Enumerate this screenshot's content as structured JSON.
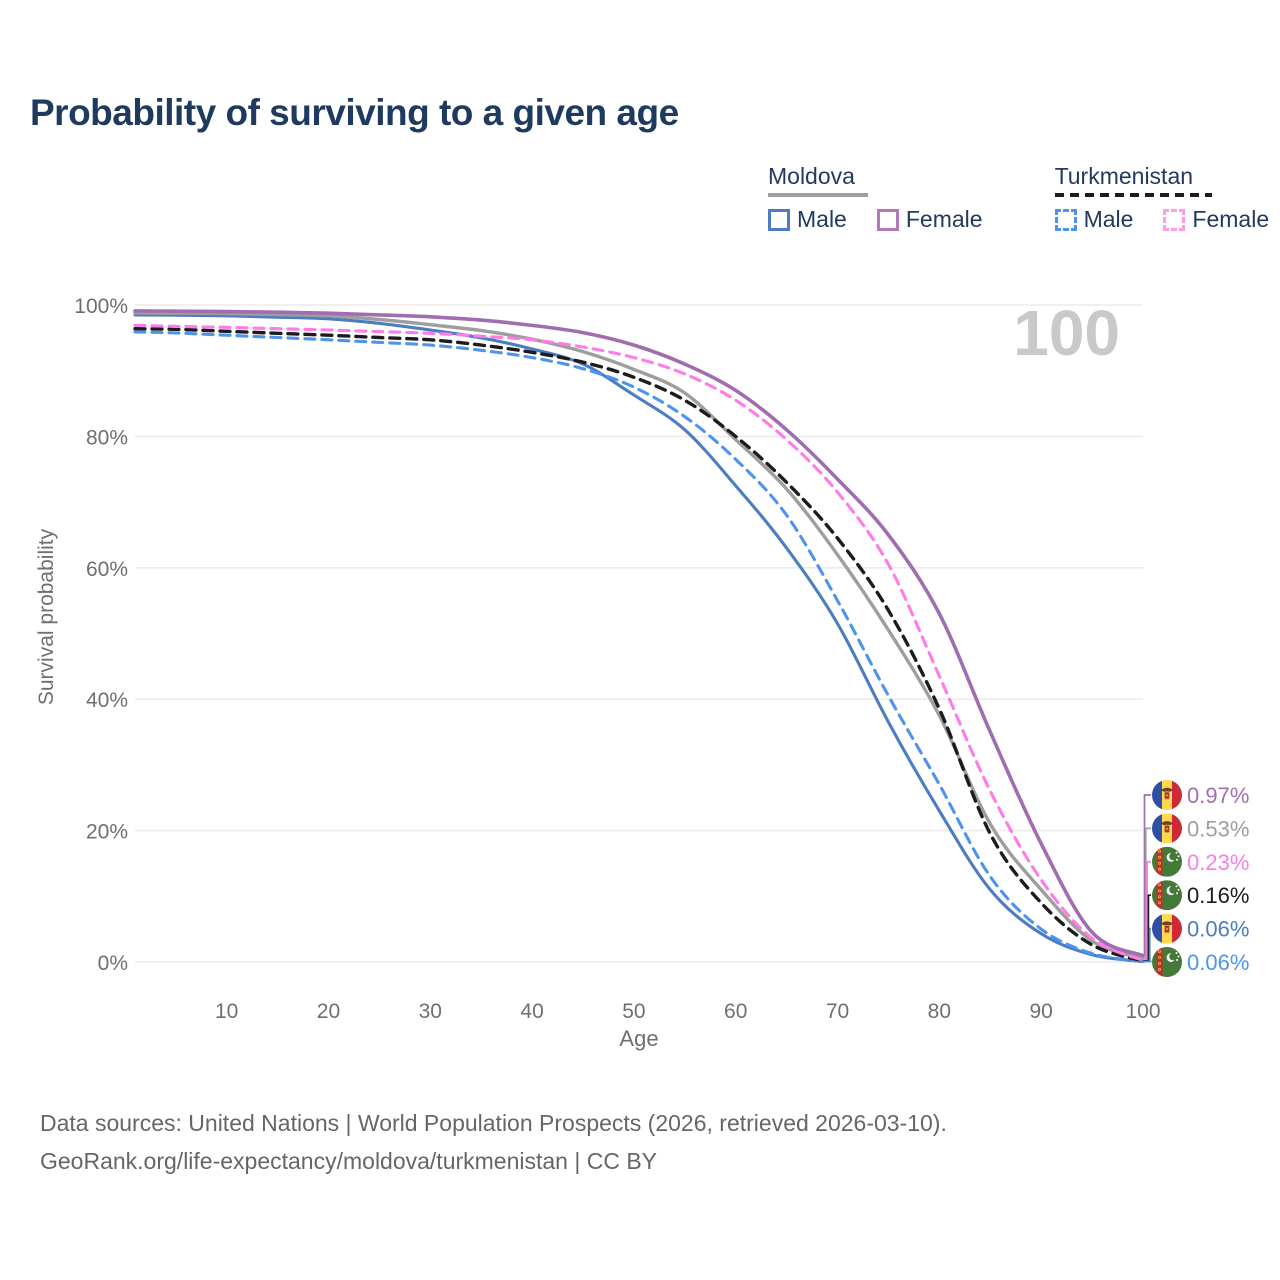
{
  "title": "Probability of surviving to a given age",
  "watermark_age": "100",
  "legend": {
    "groups": [
      {
        "country": "Moldova",
        "line_style": "solid",
        "line_color": "#9E9E9E",
        "items": [
          {
            "label": "Male",
            "color": "#4B7DC0",
            "style": "solid"
          },
          {
            "label": "Female",
            "color": "#B479B8",
            "style": "solid"
          }
        ]
      },
      {
        "country": "Turkmenistan",
        "line_style": "dashed",
        "line_color": "#1C1C1C",
        "items": [
          {
            "label": "Male",
            "color": "#4E94EE",
            "style": "dashed"
          },
          {
            "label": "Female",
            "color": "#FF9BE8",
            "style": "dashed"
          }
        ]
      }
    ]
  },
  "chart_data": {
    "type": "line",
    "title": "Probability of surviving to a given age",
    "xlabel": "Age",
    "ylabel": "Survival probability",
    "xlim": [
      1,
      100
    ],
    "ylim": [
      0,
      100
    ],
    "x_ticks": [
      10,
      20,
      30,
      40,
      50,
      60,
      70,
      80,
      90,
      100
    ],
    "y_ticks": [
      0,
      20,
      40,
      60,
      80,
      100
    ],
    "y_tick_suffix": "%",
    "grid": "horizontal",
    "legend_position": "top-right",
    "ages": [
      1,
      5,
      10,
      15,
      20,
      25,
      30,
      35,
      40,
      45,
      50,
      55,
      60,
      65,
      70,
      75,
      80,
      85,
      90,
      95,
      100
    ],
    "series": [
      {
        "name": "Moldova Male",
        "country": "moldova",
        "sex": "Male",
        "color": "#4B7DC0",
        "dash": "solid",
        "width": 3.1,
        "end_label": "0.06%",
        "values": [
          98.5,
          98.45,
          98.35,
          98.15,
          97.9,
          97.2,
          96.2,
          95.0,
          93.3,
          91.0,
          86.3,
          81.0,
          72.5,
          63.0,
          51.5,
          36.5,
          23.0,
          11.0,
          4.3,
          1.1,
          0.06
        ]
      },
      {
        "name": "Turkmenistan Male",
        "country": "turkmenistan",
        "sex": "Male",
        "color": "#4E94EE",
        "dash": "dashed",
        "width": 3.1,
        "end_label": "0.06%",
        "values": [
          95.9,
          95.75,
          95.4,
          95.05,
          94.7,
          94.3,
          93.9,
          93.1,
          92.0,
          90.3,
          87.5,
          83.0,
          76.5,
          68.0,
          55.0,
          40.5,
          27.0,
          13.0,
          5.0,
          1.3,
          0.06
        ]
      },
      {
        "name": "Moldova",
        "country": "moldova",
        "sex": "Both sexes",
        "color": "#9E9E9E",
        "dash": "solid",
        "width": 3.4,
        "end_label": "0.53%",
        "values": [
          98.8,
          98.75,
          98.7,
          98.55,
          98.35,
          97.8,
          97.0,
          96.1,
          94.8,
          92.9,
          90.2,
          86.6,
          79.5,
          72.0,
          62.0,
          50.5,
          37.5,
          21.0,
          11.0,
          3.2,
          0.53
        ]
      },
      {
        "name": "Turkmenistan",
        "country": "turkmenistan",
        "sex": "Both sexes",
        "color": "#1C1C1C",
        "dash": "dashed",
        "width": 3.4,
        "end_label": "0.16%",
        "values": [
          96.4,
          96.3,
          96.0,
          95.7,
          95.4,
          95.05,
          94.7,
          93.9,
          92.8,
          91.3,
          89.0,
          85.5,
          80.0,
          73.0,
          64.5,
          53.5,
          38.5,
          19.5,
          9.0,
          2.6,
          0.16
        ]
      },
      {
        "name": "Turkmenistan Female",
        "country": "turkmenistan",
        "sex": "Female",
        "color": "#FF7BE5",
        "dash": "dashed",
        "width": 3.1,
        "end_label": "0.23%",
        "values": [
          96.9,
          96.75,
          96.6,
          96.4,
          96.2,
          95.95,
          95.7,
          95.25,
          94.7,
          93.6,
          92.0,
          89.5,
          85.5,
          79.5,
          71.5,
          60.5,
          43.5,
          26.0,
          12.5,
          3.6,
          0.23
        ]
      },
      {
        "name": "Moldova Female",
        "country": "moldova",
        "sex": "Female",
        "color": "#A06EB0",
        "dash": "solid",
        "width": 3.6,
        "end_label": "0.97%",
        "values": [
          99.1,
          99.05,
          99.0,
          98.9,
          98.75,
          98.5,
          98.2,
          97.7,
          96.9,
          95.8,
          93.9,
          91.0,
          87.0,
          81.0,
          73.5,
          65.0,
          53.0,
          35.0,
          18.0,
          4.5,
          0.97
        ]
      }
    ],
    "label_order_top_to_bottom": [
      "Moldova Female",
      "Moldova",
      "Turkmenistan Female",
      "Turkmenistan",
      "Moldova Male",
      "Turkmenistan Male"
    ],
    "end_values_top_to_bottom": [
      "0.97%",
      "0.53%",
      "0.23%",
      "0.16%",
      "0.06%",
      "0.06%"
    ]
  },
  "footer": {
    "line1": "Data sources: United Nations | World Population Prospects (2026, retrieved 2026-03-10).",
    "line2": "GeoRank.org/life-expectancy/moldova/turkmenistan | CC BY"
  }
}
